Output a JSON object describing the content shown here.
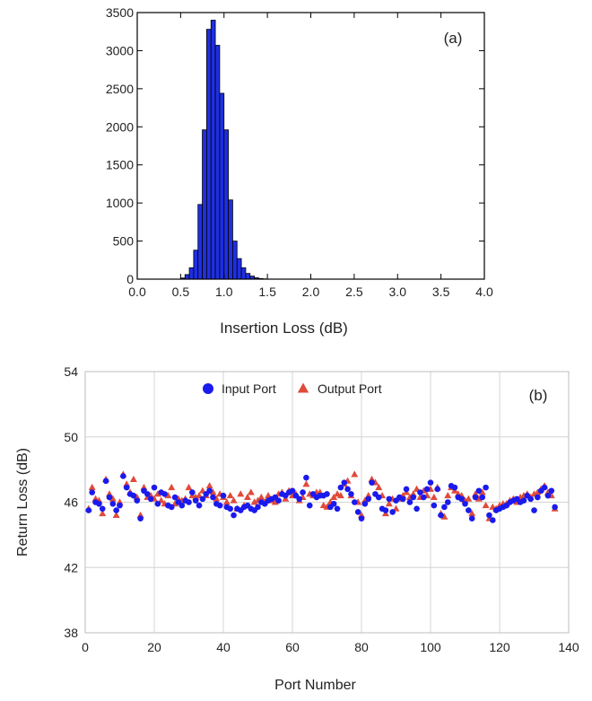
{
  "chart_data": [
    {
      "type": "bar",
      "panel_label": "(a)",
      "xlabel": "Insertion Loss (dB)",
      "ylabel": "",
      "xlim": [
        0.0,
        4.0
      ],
      "ylim": [
        0,
        3500
      ],
      "xticks": [
        "0.0",
        "0.5",
        "1.0",
        "1.5",
        "2.0",
        "2.5",
        "3.0",
        "3.5",
        "4.0"
      ],
      "yticks": [
        "0",
        "500",
        "1000",
        "1500",
        "2000",
        "2500",
        "3000",
        "3500"
      ],
      "grid": false,
      "bar_color": "#1f2fe0",
      "bin_width": 0.05,
      "bins": [
        {
          "x": 0.5,
          "value": 15
        },
        {
          "x": 0.55,
          "value": 60
        },
        {
          "x": 0.6,
          "value": 150
        },
        {
          "x": 0.65,
          "value": 380
        },
        {
          "x": 0.7,
          "value": 980
        },
        {
          "x": 0.75,
          "value": 1960
        },
        {
          "x": 0.8,
          "value": 3280
        },
        {
          "x": 0.85,
          "value": 3400
        },
        {
          "x": 0.9,
          "value": 3070
        },
        {
          "x": 0.95,
          "value": 2440
        },
        {
          "x": 1.0,
          "value": 1960
        },
        {
          "x": 1.05,
          "value": 1040
        },
        {
          "x": 1.1,
          "value": 500
        },
        {
          "x": 1.15,
          "value": 270
        },
        {
          "x": 1.2,
          "value": 150
        },
        {
          "x": 1.25,
          "value": 75
        },
        {
          "x": 1.3,
          "value": 40
        },
        {
          "x": 1.35,
          "value": 18
        },
        {
          "x": 1.4,
          "value": 8
        },
        {
          "x": 1.45,
          "value": 3
        }
      ]
    },
    {
      "type": "scatter",
      "panel_label": "(b)",
      "xlabel": "Port Number",
      "ylabel": "Return Loss (dB)",
      "xlim": [
        0,
        140
      ],
      "ylim": [
        38,
        54
      ],
      "xticks": [
        "0",
        "20",
        "40",
        "60",
        "80",
        "100",
        "120",
        "140"
      ],
      "yticks": [
        "38",
        "42",
        "46",
        "50",
        "54"
      ],
      "grid": true,
      "legend_position": "top-center",
      "series": [
        {
          "name": "Input Port",
          "marker": "circle",
          "color": "#1a1aee",
          "x": [
            1,
            2,
            3,
            4,
            5,
            6,
            7,
            8,
            9,
            10,
            11,
            12,
            13,
            14,
            15,
            16,
            17,
            18,
            19,
            20,
            21,
            22,
            23,
            24,
            25,
            26,
            27,
            28,
            29,
            30,
            31,
            32,
            33,
            34,
            35,
            36,
            37,
            38,
            39,
            40,
            41,
            42,
            43,
            44,
            45,
            46,
            47,
            48,
            49,
            50,
            51,
            52,
            53,
            54,
            55,
            56,
            57,
            58,
            59,
            60,
            61,
            62,
            63,
            64,
            65,
            66,
            67,
            68,
            69,
            70,
            71,
            72,
            73,
            74,
            75,
            76,
            77,
            78,
            79,
            80,
            81,
            82,
            83,
            84,
            85,
            86,
            87,
            88,
            89,
            90,
            91,
            92,
            93,
            94,
            95,
            96,
            97,
            98,
            99,
            100,
            101,
            102,
            103,
            104,
            105,
            106,
            107,
            108,
            109,
            110,
            111,
            112,
            113,
            114,
            115,
            116,
            117,
            118,
            119,
            120,
            121,
            122,
            123,
            124,
            125,
            126,
            127,
            128,
            129,
            130,
            131,
            132,
            133,
            134,
            135,
            136
          ],
          "y": [
            45.5,
            46.6,
            46.0,
            45.9,
            45.6,
            47.3,
            46.3,
            45.9,
            45.5,
            45.8,
            47.6,
            46.9,
            46.5,
            46.4,
            46.1,
            45.0,
            46.7,
            46.5,
            46.2,
            46.9,
            45.9,
            46.6,
            46.5,
            45.8,
            45.7,
            46.3,
            46.0,
            45.8,
            46.1,
            46.0,
            46.6,
            46.1,
            45.8,
            46.2,
            46.5,
            46.7,
            46.3,
            45.9,
            45.8,
            46.4,
            45.7,
            45.6,
            45.2,
            45.6,
            45.5,
            45.7,
            45.8,
            45.6,
            45.5,
            45.7,
            46.0,
            45.9,
            46.1,
            46.2,
            46.3,
            46.1,
            46.5,
            46.4,
            46.6,
            46.7,
            46.4,
            46.2,
            46.6,
            47.5,
            45.8,
            46.5,
            46.3,
            46.4,
            46.4,
            46.5,
            45.7,
            45.9,
            45.6,
            46.9,
            47.2,
            46.8,
            46.5,
            46.0,
            45.4,
            45.0,
            45.9,
            46.2,
            47.2,
            46.5,
            46.3,
            45.6,
            45.5,
            46.2,
            45.4,
            46.1,
            46.3,
            46.2,
            46.8,
            46.0,
            46.3,
            45.6,
            46.6,
            46.3,
            46.8,
            47.2,
            45.8,
            46.8,
            45.2,
            45.7,
            46.0,
            47.0,
            46.9,
            46.3,
            46.2,
            45.9,
            45.5,
            45.0,
            46.3,
            46.7,
            46.3,
            46.9,
            45.2,
            44.9,
            45.5,
            45.6,
            45.7,
            45.8,
            46.0,
            46.1,
            46.2,
            46.0,
            46.1,
            46.4,
            46.2,
            45.5,
            46.3,
            46.7,
            46.9,
            46.4,
            46.7,
            45.7
          ]
        },
        {
          "name": "Output Port",
          "marker": "triangle",
          "color": "#e04a3a",
          "x": [
            1,
            2,
            3,
            4,
            5,
            6,
            7,
            8,
            9,
            10,
            11,
            12,
            13,
            14,
            15,
            16,
            17,
            18,
            19,
            20,
            21,
            22,
            23,
            24,
            25,
            26,
            27,
            28,
            29,
            30,
            31,
            32,
            33,
            34,
            35,
            36,
            37,
            38,
            39,
            40,
            41,
            42,
            43,
            44,
            45,
            46,
            47,
            48,
            49,
            50,
            51,
            52,
            53,
            54,
            55,
            56,
            57,
            58,
            59,
            60,
            61,
            62,
            63,
            64,
            65,
            66,
            67,
            68,
            69,
            70,
            71,
            72,
            73,
            74,
            75,
            76,
            77,
            78,
            79,
            80,
            81,
            82,
            83,
            84,
            85,
            86,
            87,
            88,
            89,
            90,
            91,
            92,
            93,
            94,
            95,
            96,
            97,
            98,
            99,
            100,
            101,
            102,
            103,
            104,
            105,
            106,
            107,
            108,
            109,
            110,
            111,
            112,
            113,
            114,
            115,
            116,
            117,
            118,
            119,
            120,
            121,
            122,
            123,
            124,
            125,
            126,
            127,
            128,
            129,
            130,
            131,
            132,
            133,
            134,
            135,
            136
          ],
          "y": [
            45.6,
            46.9,
            46.2,
            46.1,
            45.3,
            47.4,
            46.5,
            46.2,
            45.2,
            46.0,
            47.7,
            47.1,
            46.6,
            47.4,
            46.3,
            45.2,
            46.9,
            46.3,
            46.4,
            46.2,
            46.5,
            46.1,
            45.9,
            46.4,
            46.9,
            45.9,
            46.2,
            46.1,
            46.2,
            46.9,
            46.4,
            46.3,
            46.4,
            46.7,
            46.4,
            47.0,
            46.6,
            46.2,
            46.5,
            46.3,
            46.0,
            46.4,
            46.1,
            45.6,
            46.5,
            45.8,
            46.3,
            46.6,
            46.0,
            46.1,
            46.3,
            46.0,
            46.4,
            46.1,
            46.0,
            46.5,
            46.6,
            46.2,
            46.7,
            46.4,
            46.5,
            46.1,
            46.3,
            47.1,
            46.5,
            46.4,
            46.6,
            46.6,
            45.8,
            45.7,
            46.0,
            46.3,
            46.5,
            46.4,
            47.1,
            47.3,
            46.4,
            47.7,
            46.0,
            45.2,
            46.1,
            46.4,
            47.4,
            47.2,
            46.9,
            46.4,
            45.3,
            45.9,
            46.2,
            45.6,
            46.2,
            46.4,
            46.6,
            46.3,
            46.5,
            46.8,
            46.3,
            46.7,
            46.4,
            46.8,
            46.3,
            46.9,
            45.3,
            45.1,
            46.4,
            46.9,
            46.7,
            46.5,
            46.4,
            46.1,
            46.2,
            45.3,
            46.5,
            46.2,
            46.6,
            45.8,
            45.0,
            45.7,
            45.6,
            45.8,
            45.9,
            45.9,
            46.1,
            46.2,
            46.0,
            46.3,
            46.4,
            46.5,
            46.3,
            46.5,
            46.6,
            46.8,
            47.0,
            46.6,
            46.4,
            45.6
          ]
        }
      ]
    }
  ]
}
